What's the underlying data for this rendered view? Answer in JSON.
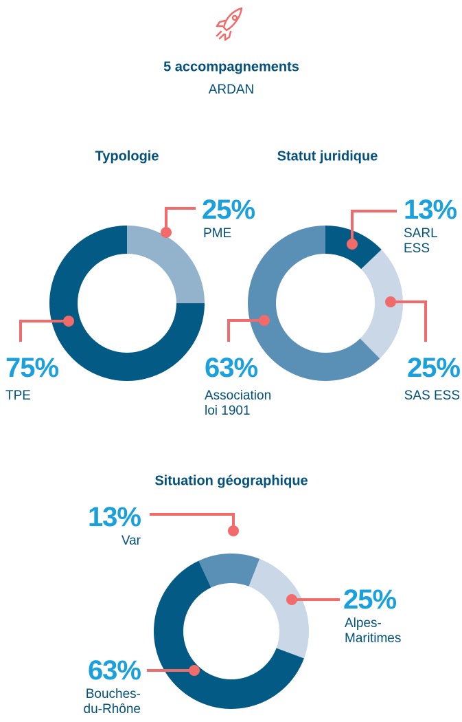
{
  "header": {
    "title": "5 accompagnements",
    "subtitle": "ARDAN"
  },
  "chart_data": [
    {
      "type": "pie",
      "title": "Typologie",
      "categories": [
        "PME",
        "TPE"
      ],
      "values": [
        25,
        75
      ],
      "value_labels": [
        "25%",
        "75%"
      ],
      "colors": [
        "#93b3cc",
        "#035a85"
      ]
    },
    {
      "type": "pie",
      "title": "Statut juridique",
      "categories": [
        "SARL ESS",
        "SAS ESS",
        "Association\nloi 1901"
      ],
      "values": [
        13,
        25,
        63
      ],
      "value_labels": [
        "13%",
        "25%",
        "63%"
      ],
      "colors": [
        "#035a85",
        "#c9d7e6",
        "#5b90b6"
      ]
    },
    {
      "type": "pie",
      "title": "Situation géographique",
      "categories": [
        "Var",
        "Alpes-\nMaritimes",
        "Bouches-\ndu-Rhône"
      ],
      "values": [
        13,
        25,
        63
      ],
      "value_labels": [
        "13%",
        "25%",
        "63%"
      ],
      "colors": [
        "#5b90b6",
        "#c9d7e6",
        "#035a85"
      ]
    }
  ]
}
